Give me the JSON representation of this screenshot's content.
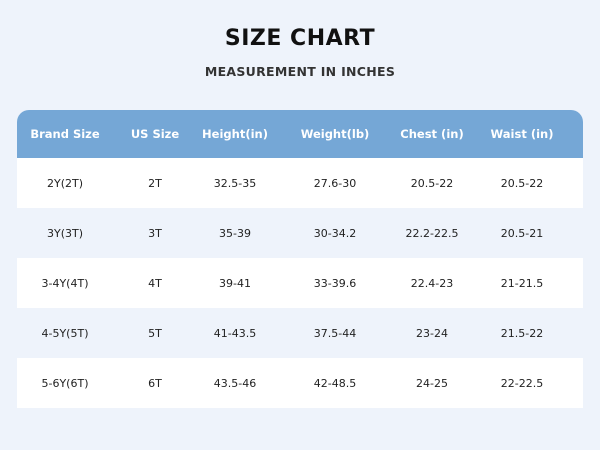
{
  "title": "SIZE CHART",
  "subtitle": "MEASUREMENT IN INCHES",
  "colors": {
    "header": "#75a7d6",
    "background": "#eef3fb",
    "row": "#ffffff"
  },
  "table": {
    "headers": [
      "Brand Size",
      "US Size",
      "Height(in)",
      "Weight(lb)",
      "Chest (in)",
      "Waist (in)"
    ],
    "rows": [
      [
        "2Y(2T)",
        "2T",
        "32.5-35",
        "27.6-30",
        "20.5-22",
        "20.5-22"
      ],
      [
        "3Y(3T)",
        "3T",
        "35-39",
        "30-34.2",
        "22.2-22.5",
        "20.5-21"
      ],
      [
        "3-4Y(4T)",
        "4T",
        "39-41",
        "33-39.6",
        "22.4-23",
        "21-21.5"
      ],
      [
        "4-5Y(5T)",
        "5T",
        "41-43.5",
        "37.5-44",
        "23-24",
        "21.5-22"
      ],
      [
        "5-6Y(6T)",
        "6T",
        "43.5-46",
        "42-48.5",
        "24-25",
        "22-22.5"
      ]
    ]
  }
}
